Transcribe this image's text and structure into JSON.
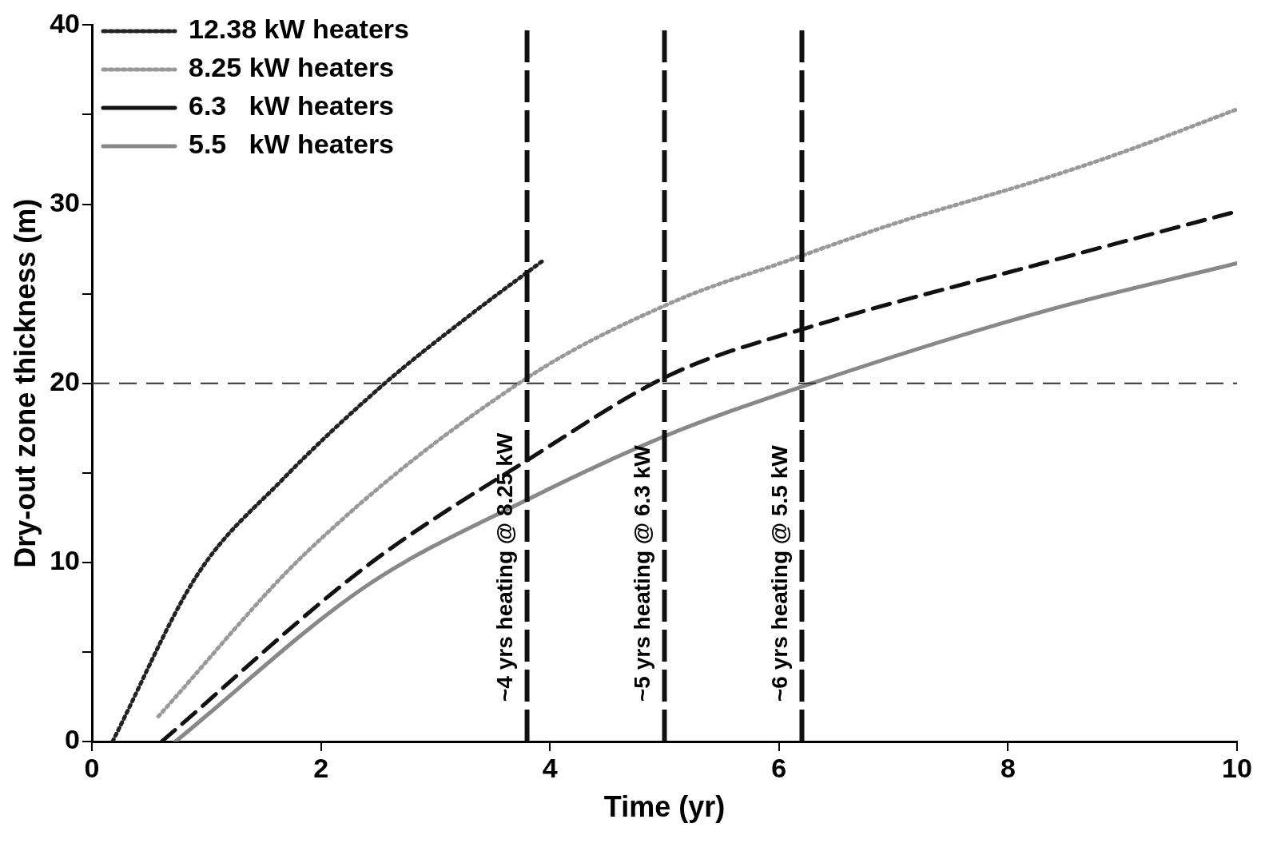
{
  "chart_data": {
    "type": "line",
    "xlabel": "Time (yr)",
    "ylabel": "Dry-out zone thickness (m)",
    "xlim": [
      0,
      10
    ],
    "xticks": [
      0,
      2,
      4,
      6,
      8,
      10
    ],
    "ylim": [
      0,
      40
    ],
    "yticks": [
      0,
      {
        "value": 5,
        "label": null
      },
      10,
      {
        "value": 15,
        "label": null
      },
      20,
      {
        "value": 25,
        "label": null
      },
      30,
      {
        "value": 35,
        "label": null
      },
      40
    ],
    "grid": false,
    "legend": "top left",
    "marker": "none",
    "series": [
      {
        "name": "12.38 kW heaters",
        "color": "#222222",
        "line_style": "dotted",
        "x": [
          0.18,
          0.92,
          1.66,
          2.54,
          3.3,
          3.95
        ],
        "values": [
          0,
          9.3,
          14.6,
          19.9,
          23.8,
          26.9
        ]
      },
      {
        "name": "8.25 kW heaters",
        "color": "#999999",
        "line_style": "dotted",
        "x": [
          0.58,
          1.88,
          3.8,
          5.06,
          6.1,
          7,
          8.3,
          9,
          10
        ],
        "values": [
          1.4,
          10.6,
          20.3,
          24.5,
          26.9,
          28.9,
          31.4,
          32.9,
          35.3
        ]
      },
      {
        "name": "6.3   kW heaters",
        "color": "#111111",
        "line_style": "dashed",
        "x": [
          0.61,
          2.4,
          3.8,
          5.06,
          6.3,
          8.3,
          10
        ],
        "values": [
          0,
          9.8,
          15.7,
          20.5,
          23.2,
          26.7,
          29.6
        ]
      },
      {
        "name": "5.5   kW heaters",
        "color": "#888888",
        "line_style": "solid",
        "x": [
          0.73,
          2.4,
          3.8,
          5.06,
          6.24,
          8.3,
          10
        ],
        "values": [
          0,
          8.7,
          13.5,
          17.2,
          19.9,
          24,
          26.7
        ]
      }
    ],
    "ref_lines": [
      {
        "axis": "y",
        "value": 20,
        "label": null,
        "color": "#333333",
        "line_style": "dashed"
      },
      {
        "axis": "x",
        "value": 3.8,
        "label": "~4 yrs heating @ 8.25 kW",
        "color": "#111111",
        "line_style": "dashed"
      },
      {
        "axis": "x",
        "value": 5,
        "label": "~5 yrs heating @ 6.3 kW",
        "color": "#111111",
        "line_style": "dashed"
      },
      {
        "axis": "x",
        "value": 6.2,
        "label": "~6 yrs heating @ 5.5 kW",
        "color": "#111111",
        "line_style": "dashed"
      }
    ]
  }
}
